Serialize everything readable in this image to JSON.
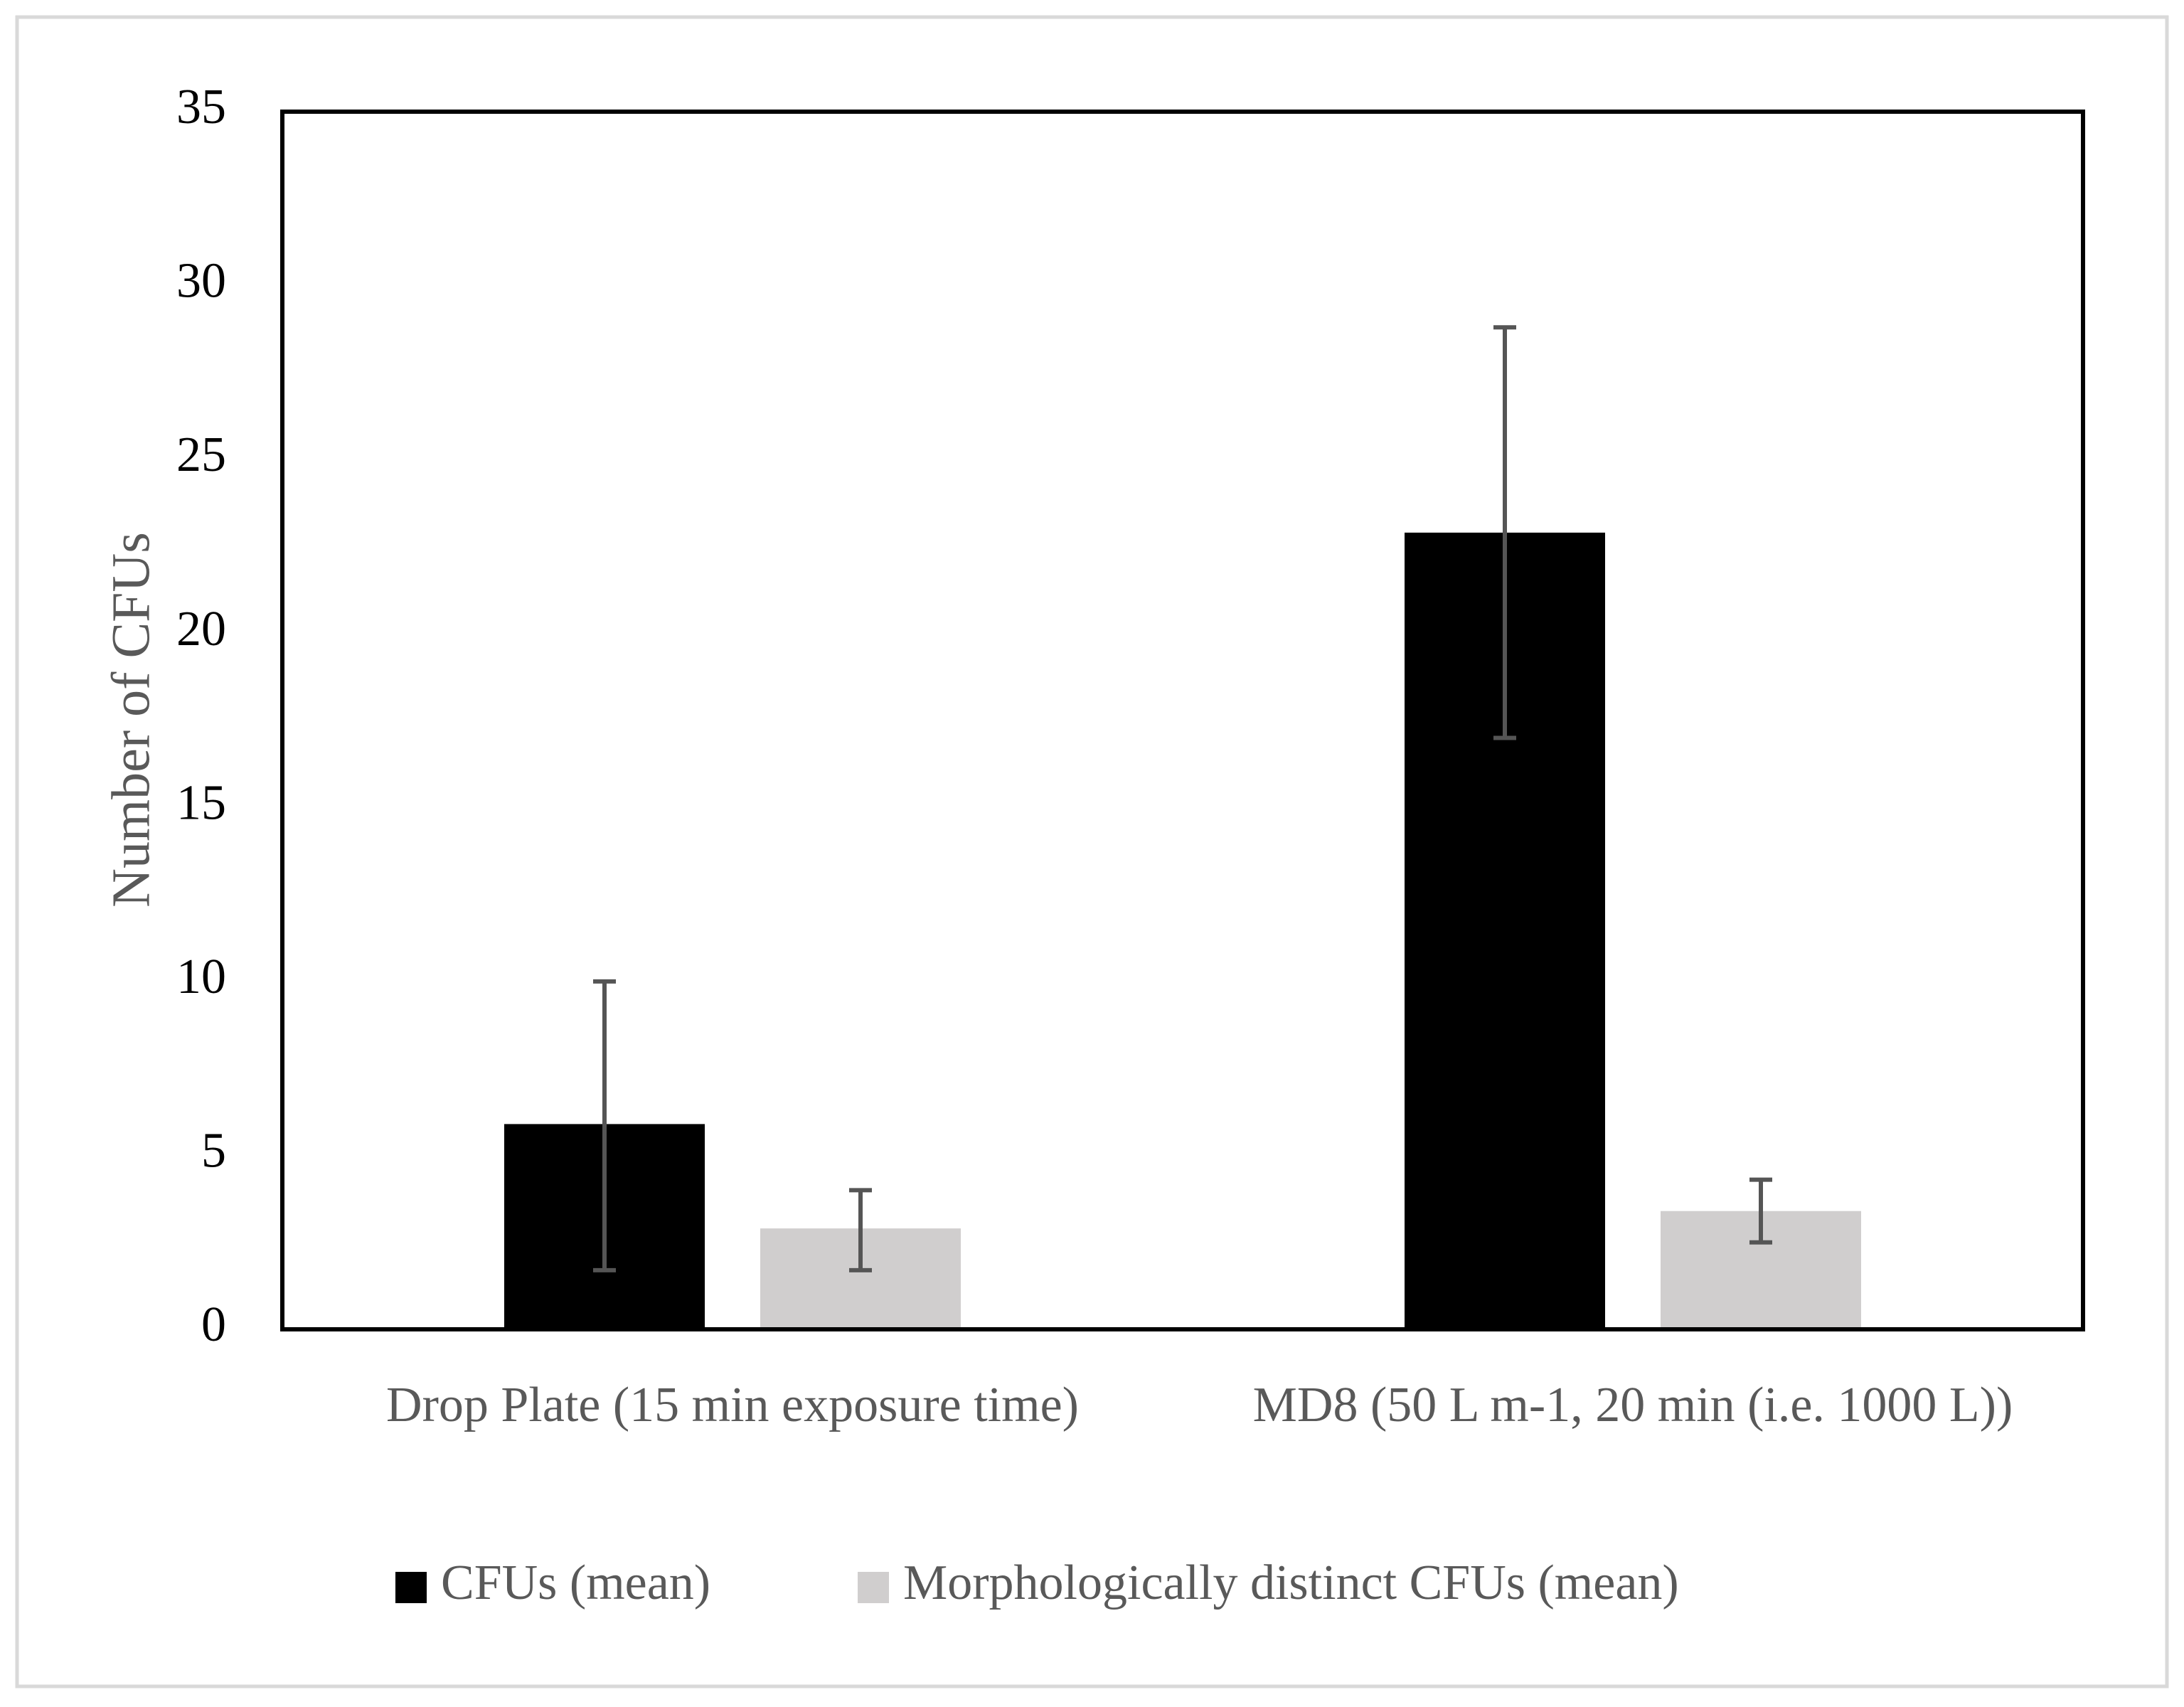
{
  "chart_data": {
    "type": "bar",
    "title": "",
    "xlabel": "",
    "ylabel": "Number of CFUs",
    "ylim": [
      0,
      35
    ],
    "yticks": [
      0,
      5,
      10,
      15,
      20,
      25,
      30,
      35
    ],
    "grid": false,
    "legend_position": "bottom",
    "categories": [
      "Drop Plate (15 min exposure time)",
      "MD8 (50 L m-1, 20 min (i.e. 1000 L))"
    ],
    "series": [
      {
        "name": "CFUs (mean)",
        "color": "#000000",
        "values": [
          5.9,
          22.9
        ],
        "error_low": [
          1.7,
          17.0
        ],
        "error_high": [
          10.0,
          28.8
        ]
      },
      {
        "name": "Morphologically distinct CFUs (mean)",
        "color": "#d0cece",
        "values": [
          2.9,
          3.4
        ],
        "error_low": [
          1.7,
          2.5
        ],
        "error_high": [
          4.0,
          4.3
        ]
      }
    ],
    "error_bar_color": "#555555"
  }
}
